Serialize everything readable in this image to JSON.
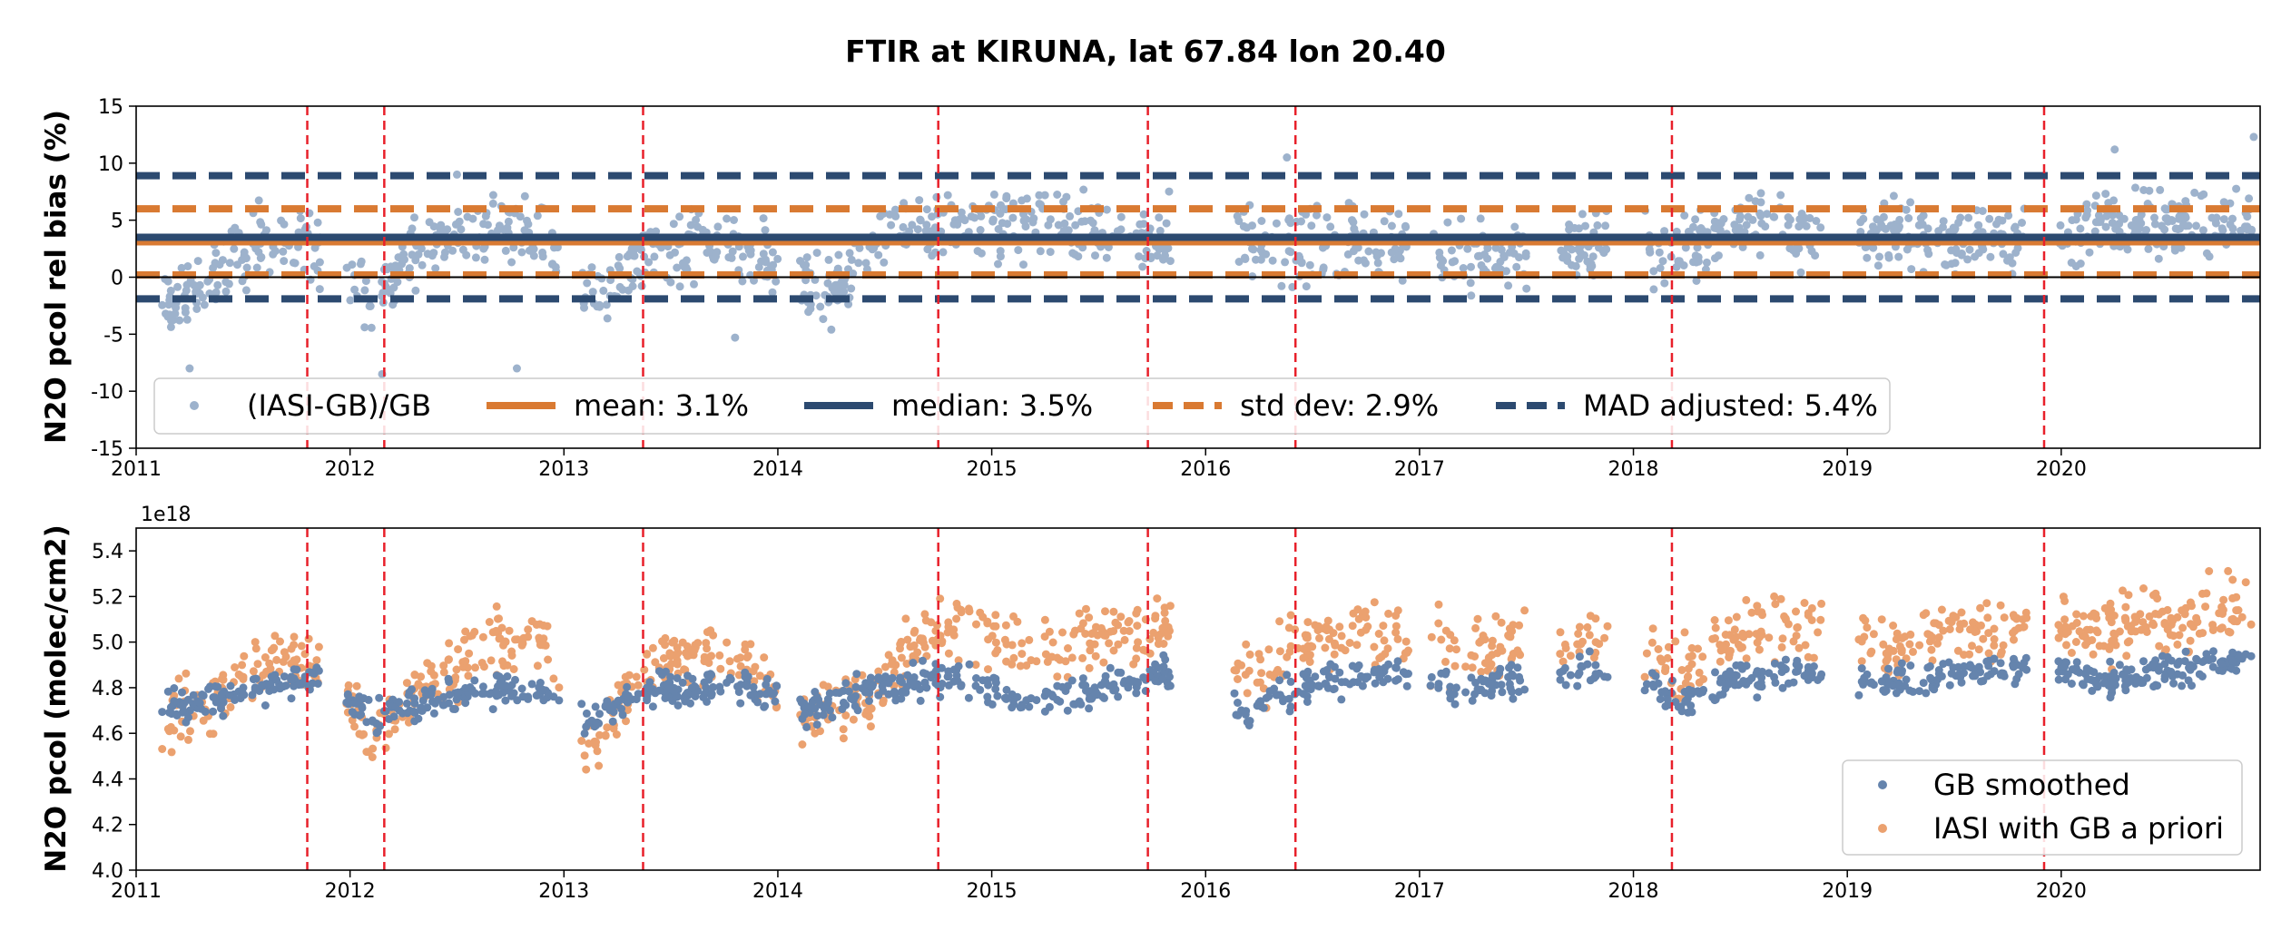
{
  "figure_title": "FTIR at KIRUNA, lat 67.84 lon 20.40",
  "colors": {
    "bias_points": "#9db2cc",
    "gb_points": "#6584ad",
    "iasi_points": "#eba16f",
    "orange": "#d97a32",
    "navy": "#2c4a70",
    "vline": "#e8202a",
    "zero": "#000000"
  },
  "event_years": [
    2011.8,
    2012.16,
    2013.37,
    2014.75,
    2015.73,
    2016.42,
    2018.18,
    2019.92
  ],
  "chart_data": [
    {
      "type": "scatter",
      "name": "top",
      "title": "FTIR at KIRUNA, lat 67.84 lon 20.40",
      "xlabel": "",
      "ylabel": "N2O pcol rel bias (%)",
      "xlim": [
        2011.0,
        2020.93
      ],
      "ylim": [
        -15,
        15
      ],
      "xticks": [
        "2011",
        "2012",
        "2013",
        "2014",
        "2015",
        "2016",
        "2017",
        "2018",
        "2019",
        "2020"
      ],
      "yticks": [
        -15,
        -10,
        -5,
        0,
        5,
        10,
        15
      ],
      "hlines": [
        {
          "name": "mean",
          "y": 3.1,
          "style": "solid",
          "color": "#d97a32"
        },
        {
          "name": "median",
          "y": 3.5,
          "style": "solid",
          "color": "#2c4a70"
        },
        {
          "name": "std dev",
          "values": [
            0.2,
            6.0
          ],
          "style": "dashed",
          "color": "#d97a32"
        },
        {
          "name": "MAD adjusted",
          "values": [
            -1.9,
            8.9
          ],
          "style": "dashed",
          "color": "#2c4a70"
        },
        {
          "name": "zero",
          "y": 0,
          "style": "solid",
          "color": "#000000"
        }
      ],
      "legend": {
        "placement": "lower-center",
        "entries": [
          {
            "label": "(IASI-GB)/GB",
            "kind": "marker",
            "color": "#9db2cc"
          },
          {
            "label": "mean: 3.1%",
            "kind": "solid",
            "color": "#d97a32"
          },
          {
            "label": "median: 3.5%",
            "kind": "solid",
            "color": "#2c4a70"
          },
          {
            "label": "std dev: 2.9%",
            "kind": "dashed",
            "color": "#d97a32"
          },
          {
            "label": "MAD adjusted: 5.4%",
            "kind": "dashed",
            "color": "#2c4a70"
          }
        ]
      },
      "series": [
        {
          "name": "(IASI-GB)/GB",
          "color": "#9db2cc",
          "trend": [
            [
              2011.15,
              -2.5
            ],
            [
              2011.35,
              0
            ],
            [
              2011.6,
              3
            ],
            [
              2011.8,
              3
            ],
            [
              2012.1,
              -1.5
            ],
            [
              2012.3,
              2
            ],
            [
              2012.6,
              4
            ],
            [
              2012.9,
              4
            ],
            [
              2013.1,
              -2
            ],
            [
              2013.4,
              2
            ],
            [
              2013.8,
              3
            ],
            [
              2014.1,
              -1
            ],
            [
              2014.3,
              -0.5
            ],
            [
              2014.6,
              4.5
            ],
            [
              2014.8,
              5
            ],
            [
              2015.2,
              4.5
            ],
            [
              2015.7,
              3.5
            ],
            [
              2016.2,
              3
            ],
            [
              2016.5,
              3
            ],
            [
              2016.8,
              3
            ],
            [
              2017.1,
              2
            ],
            [
              2017.5,
              2
            ],
            [
              2017.9,
              3
            ],
            [
              2018.2,
              2
            ],
            [
              2018.5,
              5
            ],
            [
              2018.8,
              4
            ],
            [
              2019.2,
              3.5
            ],
            [
              2019.6,
              3.5
            ],
            [
              2019.9,
              3.5
            ],
            [
              2020.2,
              5
            ],
            [
              2020.6,
              4.5
            ],
            [
              2020.9,
              5
            ]
          ],
          "gaps": [
            [
              2011.86,
              2011.98
            ],
            [
              2012.98,
              2013.08
            ],
            [
              2014.0,
              2014.1
            ],
            [
              2015.84,
              2016.12
            ],
            [
              2016.95,
              2017.05
            ],
            [
              2017.5,
              2017.65
            ],
            [
              2017.88,
              2018.05
            ],
            [
              2018.88,
              2019.05
            ],
            [
              2019.84,
              2019.98
            ]
          ],
          "outliers": [
            [
              2011.25,
              -8
            ],
            [
              2012.15,
              -8.5
            ],
            [
              2012.78,
              -8
            ],
            [
              2012.5,
              9
            ],
            [
              2016.38,
              10.5
            ],
            [
              2020.25,
              11.2
            ],
            [
              2020.9,
              12.3
            ],
            [
              2013.8,
              -5.3
            ],
            [
              2014.25,
              -4.6
            ]
          ]
        }
      ]
    },
    {
      "type": "scatter",
      "name": "bottom",
      "xlabel": "",
      "ylabel": "N2O pcol (molec/cm2)",
      "y_offset_label": "1e18",
      "xlim": [
        2011.0,
        2020.93
      ],
      "ylim": [
        4.0,
        5.5
      ],
      "xticks": [
        "2011",
        "2012",
        "2013",
        "2014",
        "2015",
        "2016",
        "2017",
        "2018",
        "2019",
        "2020"
      ],
      "yticks": [
        "4.0",
        "4.2",
        "4.4",
        "4.6",
        "4.8",
        "5.0",
        "5.2",
        "5.4"
      ],
      "legend": {
        "placement": "lower-right",
        "entries": [
          {
            "label": "GB smoothed",
            "color": "#6584ad"
          },
          {
            "label": "IASI with GB a priori",
            "color": "#eba16f"
          }
        ]
      },
      "series": [
        {
          "name": "GB smoothed",
          "color": "#6584ad",
          "trend": [
            [
              2011.15,
              4.73
            ],
            [
              2011.4,
              4.74
            ],
            [
              2011.6,
              4.8
            ],
            [
              2011.85,
              4.85
            ],
            [
              2012.1,
              4.68
            ],
            [
              2012.3,
              4.74
            ],
            [
              2012.6,
              4.78
            ],
            [
              2012.9,
              4.78
            ],
            [
              2013.1,
              4.65
            ],
            [
              2013.4,
              4.78
            ],
            [
              2013.8,
              4.8
            ],
            [
              2014.1,
              4.72
            ],
            [
              2014.4,
              4.78
            ],
            [
              2014.7,
              4.84
            ],
            [
              2014.9,
              4.83
            ],
            [
              2015.2,
              4.73
            ],
            [
              2015.5,
              4.8
            ],
            [
              2015.8,
              4.86
            ],
            [
              2016.2,
              4.7
            ],
            [
              2016.5,
              4.82
            ],
            [
              2016.8,
              4.87
            ],
            [
              2017.2,
              4.8
            ],
            [
              2017.5,
              4.85
            ],
            [
              2017.9,
              4.88
            ],
            [
              2018.2,
              4.75
            ],
            [
              2018.5,
              4.84
            ],
            [
              2018.8,
              4.87
            ],
            [
              2019.2,
              4.82
            ],
            [
              2019.6,
              4.87
            ],
            [
              2019.9,
              4.9
            ],
            [
              2020.2,
              4.83
            ],
            [
              2020.6,
              4.88
            ],
            [
              2020.9,
              4.92
            ]
          ],
          "gaps": [
            [
              2011.86,
              2011.98
            ],
            [
              2012.98,
              2013.08
            ],
            [
              2014.0,
              2014.1
            ],
            [
              2015.84,
              2016.12
            ],
            [
              2016.95,
              2017.05
            ],
            [
              2017.5,
              2017.65
            ],
            [
              2017.88,
              2018.05
            ],
            [
              2018.88,
              2019.05
            ],
            [
              2019.84,
              2019.98
            ]
          ]
        },
        {
          "name": "IASI with GB a priori",
          "color": "#eba16f",
          "trend": [
            [
              2011.15,
              4.66
            ],
            [
              2011.4,
              4.75
            ],
            [
              2011.6,
              4.95
            ],
            [
              2011.85,
              4.9
            ],
            [
              2012.1,
              4.58
            ],
            [
              2012.3,
              4.78
            ],
            [
              2012.6,
              4.98
            ],
            [
              2012.9,
              5.0
            ],
            [
              2013.1,
              4.55
            ],
            [
              2013.4,
              4.9
            ],
            [
              2013.8,
              4.95
            ],
            [
              2014.1,
              4.68
            ],
            [
              2014.4,
              4.75
            ],
            [
              2014.7,
              5.05
            ],
            [
              2014.9,
              5.05
            ],
            [
              2015.2,
              4.96
            ],
            [
              2015.5,
              5.0
            ],
            [
              2015.8,
              5.05
            ],
            [
              2016.2,
              4.85
            ],
            [
              2016.5,
              5.0
            ],
            [
              2016.8,
              5.05
            ],
            [
              2017.2,
              4.97
            ],
            [
              2017.5,
              4.98
            ],
            [
              2017.9,
              5.02
            ],
            [
              2018.2,
              4.85
            ],
            [
              2018.5,
              5.05
            ],
            [
              2018.8,
              5.1
            ],
            [
              2019.2,
              4.98
            ],
            [
              2019.6,
              5.05
            ],
            [
              2019.9,
              5.1
            ],
            [
              2020.2,
              5.05
            ],
            [
              2020.6,
              5.1
            ],
            [
              2020.9,
              5.18
            ]
          ],
          "gaps": [
            [
              2011.86,
              2011.98
            ],
            [
              2012.98,
              2013.08
            ],
            [
              2014.0,
              2014.1
            ],
            [
              2015.84,
              2016.12
            ],
            [
              2016.95,
              2017.05
            ],
            [
              2017.5,
              2017.65
            ],
            [
              2017.88,
              2018.05
            ],
            [
              2018.88,
              2019.05
            ],
            [
              2019.84,
              2019.98
            ]
          ]
        }
      ]
    }
  ]
}
